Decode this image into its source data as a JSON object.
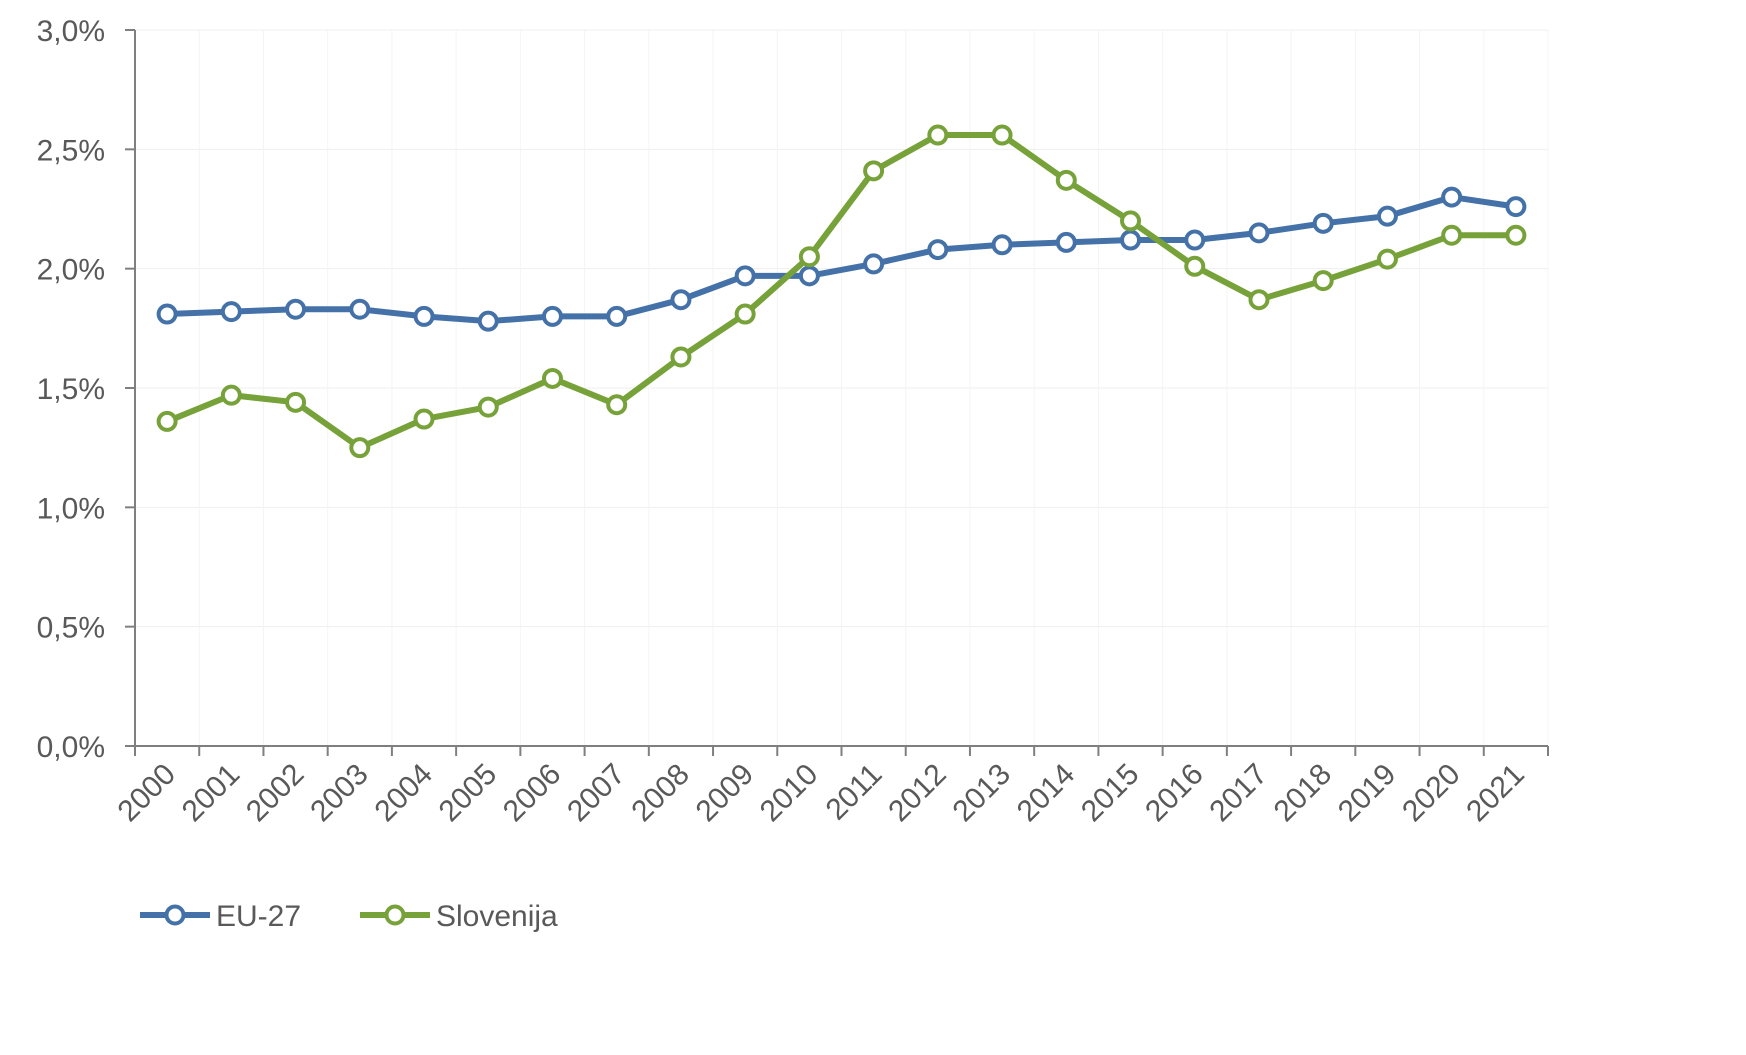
{
  "chart_data": {
    "type": "line",
    "title": "",
    "xlabel": "",
    "ylabel": "",
    "categories": [
      "2000",
      "2001",
      "2002",
      "2003",
      "2004",
      "2005",
      "2006",
      "2007",
      "2008",
      "2009",
      "2010",
      "2011",
      "2012",
      "2013",
      "2014",
      "2015",
      "2016",
      "2017",
      "2018",
      "2019",
      "2020",
      "2021"
    ],
    "y_ticks": [
      "0,0%",
      "0,5%",
      "1,0%",
      "1,5%",
      "2,0%",
      "2,5%",
      "3,0%"
    ],
    "ylim": [
      0,
      3.0
    ],
    "grid": true,
    "legend_position": "bottom-left",
    "series": [
      {
        "name": "EU-27",
        "color": "#4472a8",
        "values": [
          1.81,
          1.82,
          1.83,
          1.83,
          1.8,
          1.78,
          1.8,
          1.8,
          1.87,
          1.97,
          1.97,
          2.02,
          2.08,
          2.1,
          2.11,
          2.12,
          2.12,
          2.15,
          2.19,
          2.22,
          2.3,
          2.26
        ]
      },
      {
        "name": "Slovenija",
        "color": "#77a23a",
        "values": [
          1.36,
          1.47,
          1.44,
          1.25,
          1.37,
          1.42,
          1.54,
          1.43,
          1.63,
          1.81,
          2.05,
          2.41,
          2.56,
          2.56,
          2.37,
          2.2,
          2.01,
          1.87,
          1.95,
          2.04,
          2.14,
          2.14
        ]
      }
    ]
  }
}
